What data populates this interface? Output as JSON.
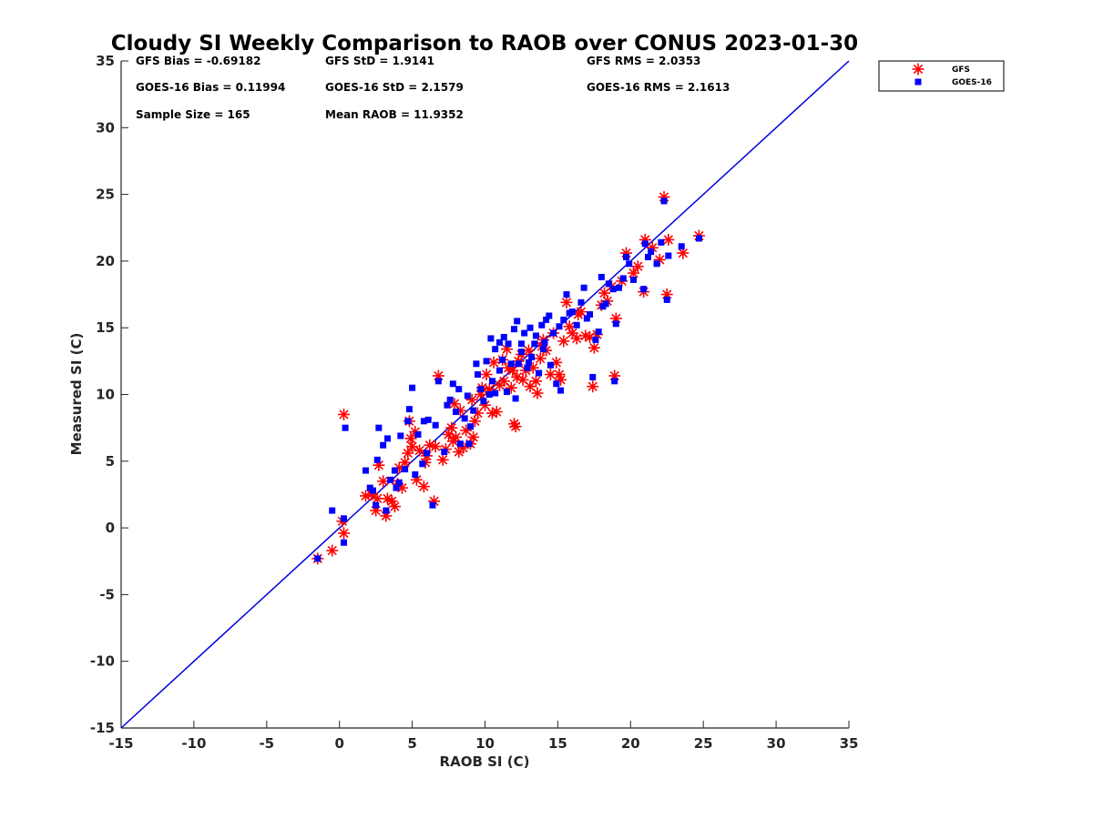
{
  "chart_data": {
    "type": "scatter",
    "title": "Cloudy SI Weekly Comparison to RAOB over CONUS 2023-01-30",
    "xlabel": "RAOB SI (C)",
    "ylabel": "Measured SI (C)",
    "xlim": [
      -15,
      35
    ],
    "ylim": [
      -15,
      35
    ],
    "xticks": [
      "-15",
      "-10",
      "-5",
      "0",
      "5",
      "10",
      "15",
      "20",
      "25",
      "30",
      "35"
    ],
    "yticks": [
      "-15",
      "-10",
      "-5",
      "0",
      "5",
      "10",
      "15",
      "20",
      "25",
      "30",
      "35"
    ],
    "grid": false,
    "legend_position": "top-right, outside plot",
    "reference_line": {
      "x": [
        -15,
        35
      ],
      "y": [
        -15,
        35
      ],
      "color": "#0000dd"
    },
    "stats": [
      [
        "GFS Bias = -0.69182",
        "GFS StD = 1.9141",
        "GFS RMS = 2.0353"
      ],
      [
        "GOES-16 Bias = 0.11994",
        "GOES-16 StD = 2.1579",
        "GOES-16 RMS = 2.1613"
      ],
      [
        "Sample Size = 165",
        "Mean RAOB = 11.9352",
        ""
      ]
    ],
    "series": [
      {
        "name": "GFS",
        "marker": "asterisk",
        "color": "#ff0000",
        "points": [
          [
            -1.5,
            -2.3
          ],
          [
            -0.5,
            -1.7
          ],
          [
            0.3,
            -0.4
          ],
          [
            0.2,
            0.5
          ],
          [
            0.3,
            8.5
          ],
          [
            1.8,
            2.4
          ],
          [
            2.2,
            2.5
          ],
          [
            2.5,
            1.3
          ],
          [
            2.7,
            4.7
          ],
          [
            3.0,
            3.5
          ],
          [
            3.2,
            0.9
          ],
          [
            3.3,
            2.2
          ],
          [
            3.6,
            2.0
          ],
          [
            3.8,
            1.6
          ],
          [
            4.0,
            3.3
          ],
          [
            4.1,
            4.5
          ],
          [
            4.3,
            3.0
          ],
          [
            4.5,
            4.9
          ],
          [
            4.7,
            5.6
          ],
          [
            4.8,
            8.0
          ],
          [
            5.0,
            6.1
          ],
          [
            5.2,
            7.2
          ],
          [
            5.3,
            3.6
          ],
          [
            5.5,
            5.8
          ],
          [
            5.8,
            3.1
          ],
          [
            5.9,
            4.9
          ],
          [
            6.0,
            5.4
          ],
          [
            6.2,
            6.2
          ],
          [
            6.5,
            2.0
          ],
          [
            6.8,
            11.4
          ],
          [
            7.1,
            5.1
          ],
          [
            7.3,
            5.9
          ],
          [
            7.5,
            7.0
          ],
          [
            7.7,
            7.5
          ],
          [
            7.8,
            6.5
          ],
          [
            7.9,
            9.3
          ],
          [
            8.0,
            6.8
          ],
          [
            8.2,
            5.7
          ],
          [
            8.3,
            8.8
          ],
          [
            8.5,
            6.0
          ],
          [
            8.7,
            7.3
          ],
          [
            9.0,
            6.3
          ],
          [
            9.2,
            6.8
          ],
          [
            9.3,
            8.0
          ],
          [
            9.5,
            8.6
          ],
          [
            9.7,
            10.0
          ],
          [
            9.8,
            10.5
          ],
          [
            10.0,
            9.2
          ],
          [
            10.1,
            11.5
          ],
          [
            10.3,
            10.4
          ],
          [
            10.5,
            8.6
          ],
          [
            10.6,
            12.4
          ],
          [
            10.8,
            8.7
          ],
          [
            11.0,
            10.7
          ],
          [
            11.2,
            12.6
          ],
          [
            11.3,
            11.0
          ],
          [
            11.5,
            13.4
          ],
          [
            11.6,
            12.0
          ],
          [
            11.8,
            10.5
          ],
          [
            12.0,
            7.8
          ],
          [
            12.1,
            7.6
          ],
          [
            12.2,
            11.3
          ],
          [
            12.3,
            12.5
          ],
          [
            12.5,
            13.0
          ],
          [
            12.6,
            11.1
          ],
          [
            12.8,
            11.8
          ],
          [
            13.0,
            13.3
          ],
          [
            13.1,
            10.6
          ],
          [
            13.3,
            12.0
          ],
          [
            13.5,
            11.0
          ],
          [
            13.6,
            10.1
          ],
          [
            13.8,
            12.7
          ],
          [
            14.0,
            14.1
          ],
          [
            14.2,
            13.3
          ],
          [
            14.5,
            11.5
          ],
          [
            14.7,
            14.6
          ],
          [
            14.9,
            12.4
          ],
          [
            15.1,
            11.5
          ],
          [
            15.2,
            11.1
          ],
          [
            15.4,
            14.0
          ],
          [
            15.6,
            16.9
          ],
          [
            15.8,
            15.1
          ],
          [
            16.0,
            14.6
          ],
          [
            16.3,
            14.2
          ],
          [
            16.6,
            16.2
          ],
          [
            16.9,
            14.4
          ],
          [
            17.2,
            14.3
          ],
          [
            17.4,
            10.6
          ],
          [
            17.5,
            13.5
          ],
          [
            17.7,
            14.5
          ],
          [
            18.0,
            16.7
          ],
          [
            18.2,
            17.6
          ],
          [
            18.4,
            17.0
          ],
          [
            18.7,
            18.1
          ],
          [
            18.9,
            11.4
          ],
          [
            19.0,
            15.7
          ],
          [
            19.4,
            18.5
          ],
          [
            19.7,
            20.6
          ],
          [
            20.2,
            19.1
          ],
          [
            20.5,
            19.6
          ],
          [
            20.9,
            17.7
          ],
          [
            21.0,
            21.6
          ],
          [
            21.5,
            21.0
          ],
          [
            22.0,
            20.1
          ],
          [
            22.3,
            24.8
          ],
          [
            22.5,
            17.5
          ],
          [
            22.6,
            21.6
          ],
          [
            23.6,
            20.6
          ],
          [
            24.7,
            21.9
          ],
          [
            16.4,
            16.0
          ],
          [
            13.9,
            13.6
          ],
          [
            11.9,
            11.8
          ],
          [
            9.1,
            9.6
          ],
          [
            6.6,
            6.1
          ],
          [
            4.9,
            6.7
          ],
          [
            2.6,
            2.2
          ]
        ]
      },
      {
        "name": "GOES-16",
        "marker": "square",
        "color": "#0000ff",
        "points": [
          [
            -1.5,
            -2.3
          ],
          [
            -0.5,
            1.3
          ],
          [
            0.3,
            -1.1
          ],
          [
            0.3,
            0.7
          ],
          [
            0.4,
            7.5
          ],
          [
            1.8,
            4.3
          ],
          [
            2.1,
            3.0
          ],
          [
            2.3,
            2.8
          ],
          [
            2.5,
            1.7
          ],
          [
            2.6,
            5.1
          ],
          [
            2.7,
            7.5
          ],
          [
            3.0,
            6.2
          ],
          [
            3.2,
            1.3
          ],
          [
            3.3,
            6.7
          ],
          [
            3.5,
            3.6
          ],
          [
            3.8,
            4.3
          ],
          [
            4.1,
            3.4
          ],
          [
            4.2,
            6.9
          ],
          [
            4.5,
            4.4
          ],
          [
            4.7,
            8.0
          ],
          [
            4.8,
            8.9
          ],
          [
            5.0,
            10.5
          ],
          [
            5.2,
            4.0
          ],
          [
            5.4,
            7.0
          ],
          [
            5.7,
            4.8
          ],
          [
            5.8,
            8.0
          ],
          [
            6.1,
            8.1
          ],
          [
            6.4,
            1.7
          ],
          [
            6.6,
            7.7
          ],
          [
            6.8,
            11.0
          ],
          [
            7.2,
            5.7
          ],
          [
            7.4,
            9.2
          ],
          [
            7.6,
            9.6
          ],
          [
            7.8,
            10.8
          ],
          [
            8.0,
            8.7
          ],
          [
            8.2,
            10.4
          ],
          [
            8.3,
            6.3
          ],
          [
            8.6,
            8.2
          ],
          [
            8.8,
            9.9
          ],
          [
            9.0,
            7.6
          ],
          [
            9.2,
            8.8
          ],
          [
            9.4,
            12.3
          ],
          [
            9.5,
            11.5
          ],
          [
            9.7,
            10.4
          ],
          [
            9.9,
            9.5
          ],
          [
            10.1,
            12.5
          ],
          [
            10.3,
            10.0
          ],
          [
            10.4,
            14.2
          ],
          [
            10.5,
            11.0
          ],
          [
            10.7,
            13.4
          ],
          [
            11.0,
            13.9
          ],
          [
            11.2,
            12.6
          ],
          [
            11.3,
            14.3
          ],
          [
            11.5,
            10.2
          ],
          [
            11.6,
            13.8
          ],
          [
            11.8,
            12.3
          ],
          [
            12.0,
            14.9
          ],
          [
            12.1,
            9.7
          ],
          [
            12.2,
            15.5
          ],
          [
            12.3,
            12.3
          ],
          [
            12.5,
            13.2
          ],
          [
            12.7,
            14.6
          ],
          [
            12.9,
            12.0
          ],
          [
            13.1,
            15.0
          ],
          [
            13.2,
            12.8
          ],
          [
            13.4,
            13.8
          ],
          [
            13.5,
            14.4
          ],
          [
            13.7,
            11.6
          ],
          [
            13.9,
            15.2
          ],
          [
            14.0,
            13.4
          ],
          [
            14.2,
            15.6
          ],
          [
            14.4,
            15.9
          ],
          [
            14.5,
            12.2
          ],
          [
            14.7,
            14.6
          ],
          [
            14.9,
            10.8
          ],
          [
            15.1,
            15.1
          ],
          [
            15.2,
            10.3
          ],
          [
            15.4,
            15.6
          ],
          [
            15.6,
            17.5
          ],
          [
            15.8,
            16.1
          ],
          [
            16.0,
            16.2
          ],
          [
            16.3,
            15.2
          ],
          [
            16.6,
            16.9
          ],
          [
            16.8,
            18.0
          ],
          [
            17.0,
            15.7
          ],
          [
            17.2,
            16.0
          ],
          [
            17.4,
            11.3
          ],
          [
            17.6,
            14.1
          ],
          [
            17.8,
            14.7
          ],
          [
            18.0,
            18.8
          ],
          [
            18.1,
            16.6
          ],
          [
            18.3,
            16.8
          ],
          [
            18.5,
            18.3
          ],
          [
            18.8,
            17.9
          ],
          [
            19.0,
            15.3
          ],
          [
            19.2,
            18.0
          ],
          [
            19.5,
            18.7
          ],
          [
            19.7,
            20.3
          ],
          [
            19.9,
            19.8
          ],
          [
            20.2,
            18.6
          ],
          [
            20.9,
            17.9
          ],
          [
            21.0,
            21.3
          ],
          [
            21.2,
            20.3
          ],
          [
            21.4,
            20.7
          ],
          [
            21.8,
            19.8
          ],
          [
            22.1,
            21.4
          ],
          [
            22.3,
            24.5
          ],
          [
            22.5,
            17.1
          ],
          [
            22.6,
            20.4
          ],
          [
            23.5,
            21.1
          ],
          [
            24.7,
            21.7
          ],
          [
            18.9,
            11.0
          ],
          [
            13.0,
            12.4
          ],
          [
            11.0,
            11.8
          ],
          [
            8.9,
            6.3
          ],
          [
            6.0,
            5.6
          ],
          [
            3.9,
            3.0
          ],
          [
            12.5,
            13.8
          ],
          [
            14.1,
            13.9
          ],
          [
            10.7,
            10.1
          ]
        ]
      }
    ]
  }
}
